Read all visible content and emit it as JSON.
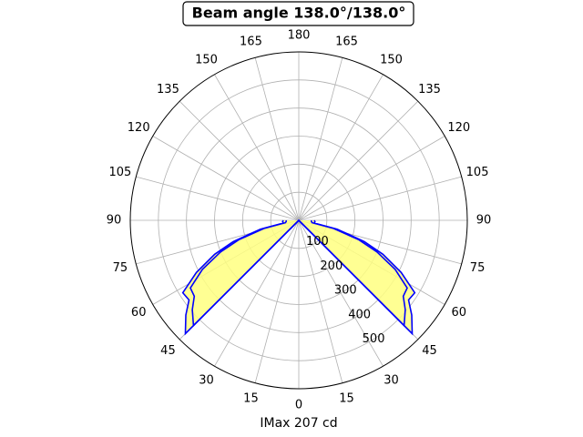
{
  "chart_data": {
    "type": "polar",
    "title": "Beam angle 138.0°/138.0°",
    "xlabel": "IMax 207 cd",
    "x": [
      -90,
      -85,
      -80,
      -77,
      -72,
      -68,
      -63,
      -58,
      -54,
      -50,
      -45,
      -44,
      44,
      45,
      50,
      54,
      58,
      63,
      68,
      72,
      77,
      80,
      85,
      90
    ],
    "series": [
      {
        "color": "#0000ff",
        "values": [
          55,
          58,
          56,
          140,
          245,
          323,
          409,
          487,
          483,
          525,
          571,
          0,
          0,
          571,
          525,
          483,
          487,
          409,
          323,
          245,
          140,
          56,
          58,
          55
        ]
      },
      {
        "color": "#0000ff",
        "values": [
          45,
          45,
          48,
          125,
          225,
          300,
          385,
          455,
          460,
          495,
          530,
          0,
          0,
          530,
          495,
          460,
          455,
          385,
          300,
          225,
          125,
          48,
          45,
          45
        ]
      }
    ],
    "fill_color": "#ffff80",
    "rlim": [
      0,
      600
    ],
    "rticks": [
      100,
      200,
      300,
      400,
      500
    ],
    "thetaticks": [
      {
        "value": -165,
        "label": "165"
      },
      {
        "value": -150,
        "label": "150"
      },
      {
        "value": -135,
        "label": "135"
      },
      {
        "value": -120,
        "label": "120"
      },
      {
        "value": -105,
        "label": "105"
      },
      {
        "value": -90,
        "label": "90"
      },
      {
        "value": -75,
        "label": "75"
      },
      {
        "value": -60,
        "label": "60"
      },
      {
        "value": -45,
        "label": "45"
      },
      {
        "value": -30,
        "label": "30"
      },
      {
        "value": -15,
        "label": "15"
      },
      0,
      15,
      30,
      45,
      60,
      75,
      90,
      105,
      120,
      135,
      150,
      165,
      180
    ],
    "grid": true
  }
}
